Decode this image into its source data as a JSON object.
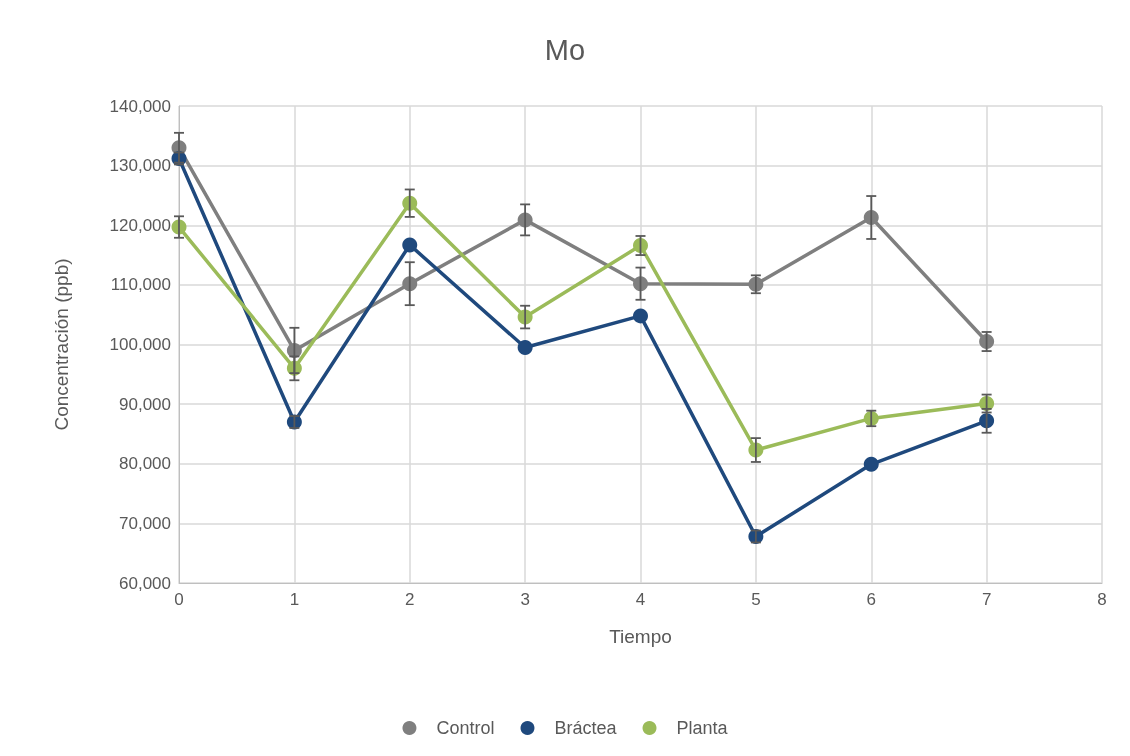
{
  "chart_data": {
    "type": "line",
    "title": "Mo",
    "xlabel": "Tiempo",
    "ylabel": "Concentración (ppb)",
    "x": [
      0,
      1,
      2,
      3,
      4,
      5,
      6,
      7
    ],
    "series": [
      {
        "name": "Control",
        "color": "#7f7f7f",
        "values": [
          133000,
          99000,
          110200,
          120900,
          110200,
          110100,
          121300,
          100500
        ],
        "errors": [
          2500,
          3800,
          3600,
          2600,
          2700,
          1500,
          3600,
          1600
        ]
      },
      {
        "name": "Bráctea",
        "color": "#1f497d",
        "values": [
          131200,
          87000,
          116700,
          99500,
          104800,
          67800,
          79900,
          87200
        ],
        "errors": [
          1000,
          1000,
          null,
          null,
          null,
          1000,
          null,
          2000
        ]
      },
      {
        "name": "Planta",
        "color": "#9bbb59",
        "values": [
          119700,
          96000,
          123700,
          104600,
          116600,
          82300,
          87600,
          90100
        ],
        "errors": [
          1800,
          2000,
          2300,
          1900,
          1600,
          2000,
          1300,
          1500
        ]
      }
    ],
    "xlim": [
      0,
      8
    ],
    "xticks": [
      0,
      1,
      2,
      3,
      4,
      5,
      6,
      7,
      8
    ],
    "ylim": [
      60000,
      140000
    ],
    "yticks": [
      {
        "value": 60000,
        "label": "60,000"
      },
      {
        "value": 70000,
        "label": "70,000"
      },
      {
        "value": 80000,
        "label": "80,000"
      },
      {
        "value": 90000,
        "label": "90,000"
      },
      {
        "value": 100000,
        "label": "100,000"
      },
      {
        "value": 110000,
        "label": "110,000"
      },
      {
        "value": 120000,
        "label": "120,000"
      },
      {
        "value": 130000,
        "label": "130,000"
      },
      {
        "value": 140000,
        "label": "140,000"
      }
    ],
    "grid": true,
    "legend": "bottom",
    "marker": "circle",
    "line_style": "solid"
  }
}
